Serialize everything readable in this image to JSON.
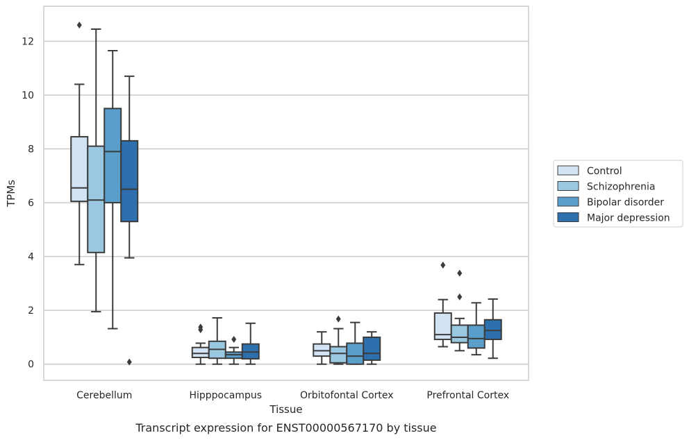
{
  "chart_data": {
    "type": "boxplot",
    "caption": "Transcript expression for ENST00000567170 by tissue",
    "xlabel": "Tissue",
    "ylabel": "TPMs",
    "ylim": [
      -0.6,
      13.3
    ],
    "yticks": [
      0,
      2,
      4,
      6,
      8,
      10,
      12
    ],
    "grid": "horizontal",
    "legend_position": "right",
    "categories": [
      "Cerebellum",
      "Hipppocampus",
      "Orbitofontal Cortex",
      "Prefrontal Cortex"
    ],
    "series": [
      {
        "name": "Control",
        "color": "#d2e3f3",
        "boxes": [
          {
            "whisker_low": 3.7,
            "q1": 6.05,
            "median": 6.55,
            "q3": 8.45,
            "whisker_high": 10.4,
            "outliers": [
              12.6
            ]
          },
          {
            "whisker_low": 0.0,
            "q1": 0.25,
            "median": 0.4,
            "q3": 0.62,
            "whisker_high": 0.78,
            "outliers": [
              1.28,
              1.38
            ]
          },
          {
            "whisker_low": 0.0,
            "q1": 0.3,
            "median": 0.5,
            "q3": 0.75,
            "whisker_high": 1.2,
            "outliers": []
          },
          {
            "whisker_low": 0.65,
            "q1": 0.92,
            "median": 1.1,
            "q3": 1.9,
            "whisker_high": 2.4,
            "outliers": [
              3.68
            ]
          }
        ]
      },
      {
        "name": "Schizophrenia",
        "color": "#9ac8e0",
        "boxes": [
          {
            "whisker_low": 1.95,
            "q1": 4.15,
            "median": 6.1,
            "q3": 8.1,
            "whisker_high": 12.45,
            "outliers": []
          },
          {
            "whisker_low": 0.0,
            "q1": 0.22,
            "median": 0.55,
            "q3": 0.85,
            "whisker_high": 1.72,
            "outliers": []
          },
          {
            "whisker_low": 0.0,
            "q1": 0.05,
            "median": 0.4,
            "q3": 0.65,
            "whisker_high": 1.32,
            "outliers": [
              1.68
            ]
          },
          {
            "whisker_low": 0.5,
            "q1": 0.8,
            "median": 1.0,
            "q3": 1.45,
            "whisker_high": 1.7,
            "outliers": [
              2.5,
              3.38
            ]
          }
        ]
      },
      {
        "name": "Bipolar disorder",
        "color": "#5a9ecc",
        "boxes": [
          {
            "whisker_low": 1.32,
            "q1": 6.0,
            "median": 7.9,
            "q3": 9.5,
            "whisker_high": 11.65,
            "outliers": []
          },
          {
            "whisker_low": 0.0,
            "q1": 0.22,
            "median": 0.35,
            "q3": 0.45,
            "whisker_high": 0.62,
            "outliers": [
              0.92
            ]
          },
          {
            "whisker_low": 0.0,
            "q1": 0.0,
            "median": 0.3,
            "q3": 0.78,
            "whisker_high": 1.55,
            "outliers": []
          },
          {
            "whisker_low": 0.35,
            "q1": 0.6,
            "median": 0.95,
            "q3": 1.45,
            "whisker_high": 2.28,
            "outliers": []
          }
        ]
      },
      {
        "name": "Major depression",
        "color": "#2e6fad",
        "boxes": [
          {
            "whisker_low": 3.95,
            "q1": 5.3,
            "median": 6.5,
            "q3": 8.3,
            "whisker_high": 10.7,
            "outliers": [
              0.08
            ]
          },
          {
            "whisker_low": 0.0,
            "q1": 0.2,
            "median": 0.45,
            "q3": 0.75,
            "whisker_high": 1.52,
            "outliers": []
          },
          {
            "whisker_low": 0.0,
            "q1": 0.15,
            "median": 0.4,
            "q3": 1.0,
            "whisker_high": 1.2,
            "outliers": []
          },
          {
            "whisker_low": 0.22,
            "q1": 0.92,
            "median": 1.25,
            "q3": 1.65,
            "whisker_high": 2.42,
            "outliers": []
          }
        ]
      }
    ]
  }
}
